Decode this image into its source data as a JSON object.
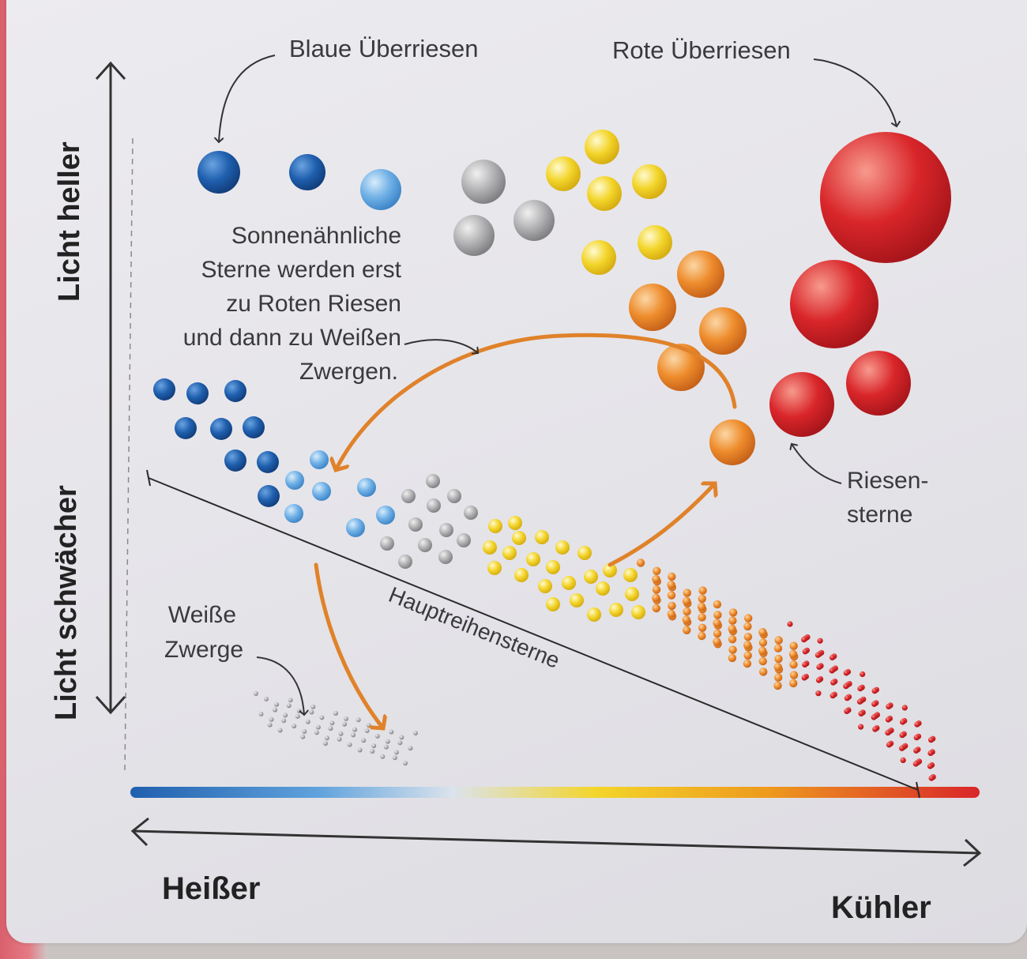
{
  "labels": {
    "blue_supergiants": "Blaue Überriesen",
    "red_supergiants": "Rote Überriesen",
    "sunlike": [
      "Sonnenähnliche",
      "Sterne werden erst",
      "zu Roten Riesen",
      "und dann zu Weißen",
      "Zwergen."
    ],
    "giants": [
      "Riesen-",
      "sterne"
    ],
    "white_dwarfs": [
      "Weiße",
      "Zwerge"
    ],
    "main_sequence": "Hauptreihensterne"
  },
  "axes": {
    "y_top": "Licht heller",
    "y_bottom": "Licht schwächer",
    "x_left": "Heißer",
    "x_right": "Kühler"
  },
  "colors": {
    "blue_dark": "#1f5fae",
    "blue_light": "#6fb0e6",
    "grey": "#a9a9ab",
    "yellow": "#f3d52a",
    "orange": "#ee8c2c",
    "red": "#d9262a",
    "arrow": "#e0822a"
  }
}
